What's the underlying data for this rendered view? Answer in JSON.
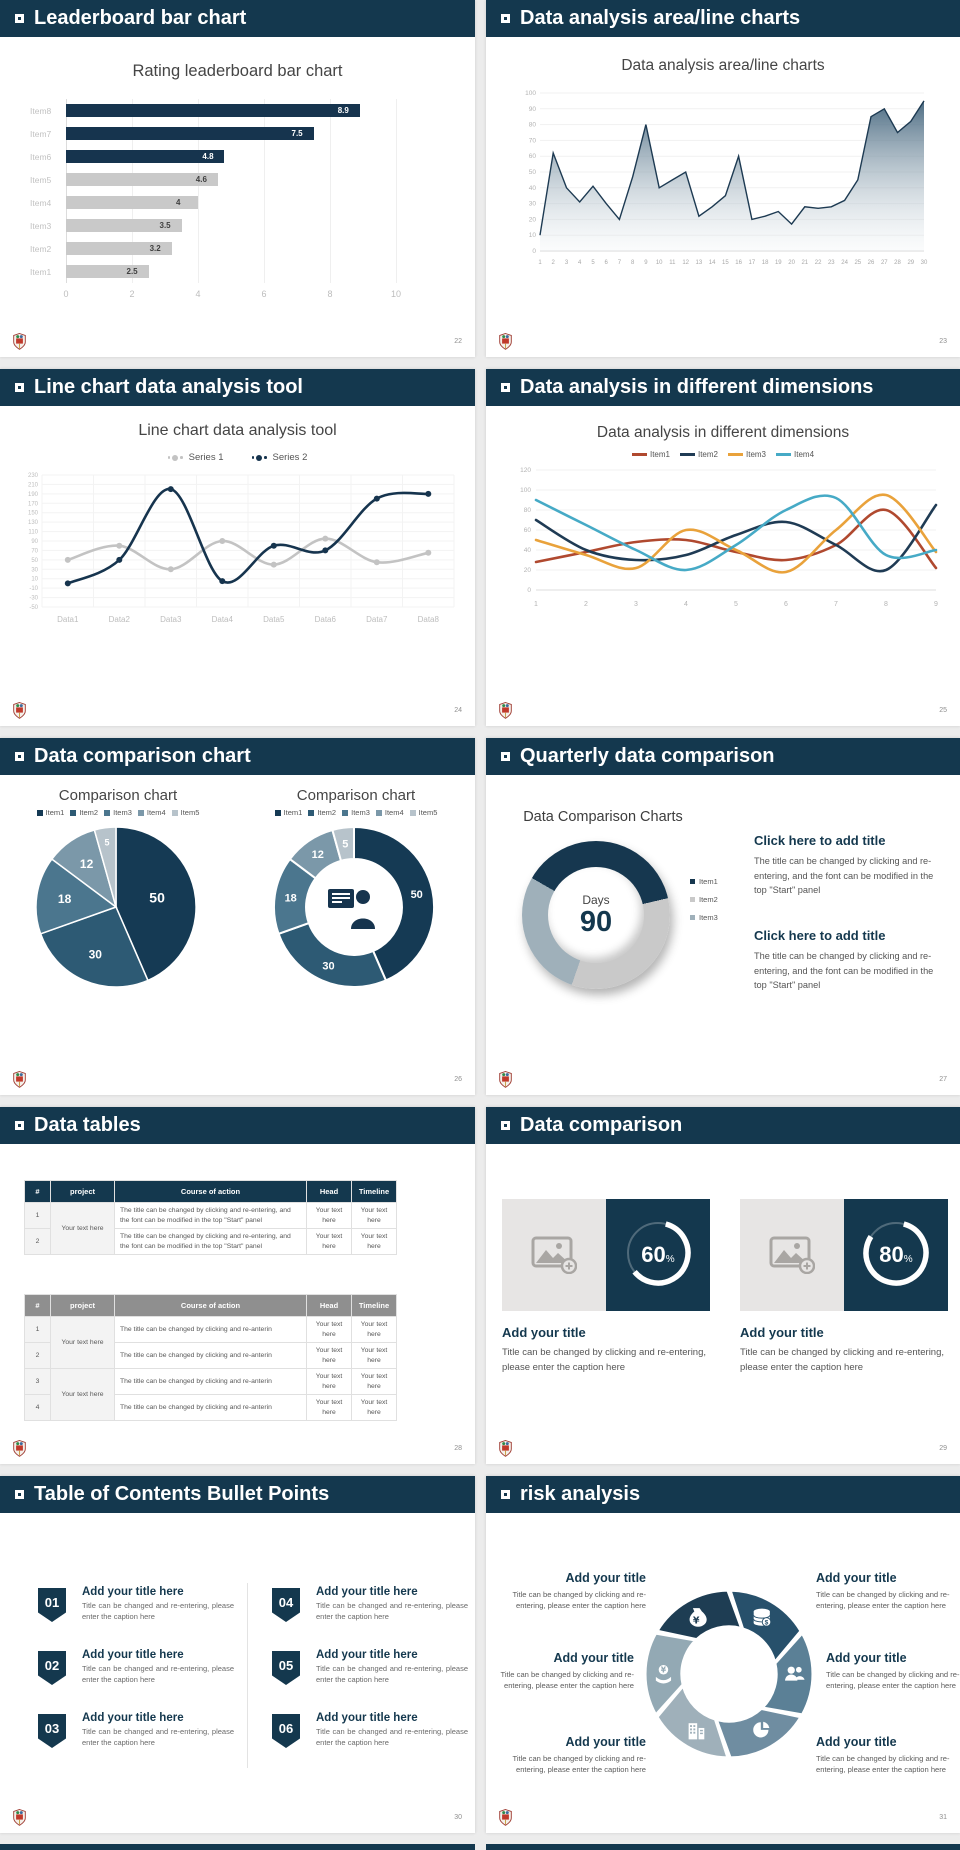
{
  "page": {
    "background": "#ececec",
    "slide_background": "#ffffff",
    "header_color": "#14384e",
    "accent_color": "#14384e",
    "logo": "crest-logo"
  },
  "slides": [
    {
      "header": "Leaderboard bar chart",
      "page_number": "22",
      "chart_data": {
        "type": "bar",
        "orientation": "horizontal",
        "title": "Rating leaderboard bar chart",
        "categories": [
          "Item8",
          "Item7",
          "Item6",
          "Item5",
          "Item4",
          "Item3",
          "Item2",
          "Item1"
        ],
        "values": [
          8.9,
          7.5,
          4.8,
          4.6,
          4,
          3.5,
          3.2,
          2.5
        ],
        "bar_colors": [
          "#16344e",
          "#16344e",
          "#16344e",
          "#c9c9c9",
          "#c9c9c9",
          "#c9c9c9",
          "#c9c9c9",
          "#c9c9c9"
        ],
        "value_label_colors": [
          "#ffffff",
          "#ffffff",
          "#ffffff",
          "#3f3f3f",
          "#3f3f3f",
          "#3f3f3f",
          "#3f3f3f",
          "#3f3f3f"
        ],
        "xticks": [
          0,
          2,
          4,
          6,
          8,
          10
        ],
        "xlim": [
          0,
          10
        ],
        "grid": true
      }
    },
    {
      "header": "Data analysis area/line charts",
      "page_number": "23",
      "chart_data": {
        "type": "area",
        "title": "Data analysis area/line charts",
        "x": [
          1,
          2,
          3,
          4,
          5,
          6,
          7,
          8,
          9,
          10,
          11,
          12,
          13,
          14,
          15,
          16,
          17,
          18,
          19,
          20,
          21,
          22,
          23,
          24,
          25,
          26,
          27,
          28,
          29,
          30
        ],
        "values": [
          10,
          62,
          40,
          31,
          41,
          30,
          20,
          47,
          80,
          40,
          45,
          50,
          22,
          28,
          35,
          60,
          20,
          22,
          25,
          17,
          28,
          27,
          28,
          32,
          45,
          85,
          90,
          75,
          82,
          95
        ],
        "yticks": [
          0,
          10,
          20,
          30,
          40,
          50,
          60,
          70,
          80,
          90,
          100
        ],
        "ylim": [
          0,
          100
        ],
        "line_color": "#1d3a52",
        "fill_top_color": "#44657d",
        "fill_bottom_color": "#eef2f4",
        "grid": true
      }
    },
    {
      "header": "Line chart data analysis tool",
      "page_number": "24",
      "chart_data": {
        "type": "line",
        "title": "Line chart data analysis tool",
        "categories": [
          "Data1",
          "Data2",
          "Data3",
          "Data4",
          "Data5",
          "Data6",
          "Data7",
          "Data8"
        ],
        "series": [
          {
            "name": "Series 1",
            "color": "#c3c3c3",
            "values": [
              50,
              80,
              30,
              90,
              40,
              95,
              45,
              65
            ]
          },
          {
            "name": "Series 2",
            "color": "#16344e",
            "values": [
              0,
              50,
              200,
              5,
              80,
              70,
              180,
              190
            ]
          }
        ],
        "yticks": [
          230,
          210,
          190,
          170,
          150,
          130,
          110,
          90,
          70,
          50,
          30,
          10,
          -10,
          -30,
          -50
        ],
        "ylim": [
          -50,
          230
        ],
        "legend_position": "top",
        "grid": true
      }
    },
    {
      "header": "Data analysis in different dimensions",
      "page_number": "25",
      "chart_data": {
        "type": "line",
        "title": "Data analysis in different dimensions",
        "x": [
          1,
          2,
          3,
          4,
          5,
          6,
          7,
          8,
          9
        ],
        "series": [
          {
            "name": "Item1",
            "color": "#b0492f",
            "values": [
              28,
              38,
              48,
              50,
              38,
              30,
              45,
              80,
              22
            ]
          },
          {
            "name": "Item2",
            "color": "#1f3b54",
            "values": [
              70,
              40,
              30,
              35,
              55,
              68,
              45,
              20,
              85
            ]
          },
          {
            "name": "Item3",
            "color": "#e9a23b",
            "values": [
              50,
              35,
              22,
              60,
              40,
              18,
              60,
              95,
              38
            ]
          },
          {
            "name": "Item4",
            "color": "#46aac6",
            "values": [
              90,
              65,
              40,
              20,
              45,
              80,
              92,
              35,
              40
            ]
          }
        ],
        "yticks": [
          0,
          20,
          40,
          60,
          80,
          100,
          120
        ],
        "ylim": [
          0,
          120
        ],
        "legend_position": "top",
        "grid": true
      }
    },
    {
      "header": "Data comparison chart",
      "page_number": "26",
      "chart_data": [
        {
          "type": "pie",
          "title": "Comparison chart",
          "labels": [
            "Item1",
            "Item2",
            "Item3",
            "Item4",
            "Item5"
          ],
          "values": [
            50,
            30,
            18,
            12,
            5
          ],
          "colors": [
            "#153a54",
            "#2d5a74",
            "#4b768e",
            "#7b98a9",
            "#b7c3cb"
          ],
          "legend_position": "top"
        },
        {
          "type": "donut",
          "title": "Comparison chart",
          "labels": [
            "Item1",
            "Item2",
            "Item3",
            "Item4",
            "Item5"
          ],
          "values": [
            50,
            30,
            18,
            12,
            5
          ],
          "colors": [
            "#153a54",
            "#2d5a74",
            "#4b768e",
            "#7b98a9",
            "#b7c3cb"
          ],
          "legend_position": "top",
          "center_icon": "presenter-icon"
        }
      ]
    },
    {
      "header": "Quarterly data comparison",
      "page_number": "27",
      "chart_data": {
        "type": "donut",
        "title": "Data Comparison Charts",
        "center_label": "Days",
        "center_value": "90",
        "legend": [
          "Item1",
          "Item2",
          "Item3"
        ],
        "values": [
          38,
          34,
          28
        ],
        "colors": [
          "#16374f",
          "#c9c9c9",
          "#9fb0ba"
        ]
      },
      "text_blocks": [
        {
          "title": "Click here to add title",
          "body": "The title can be changed by clicking and re-entering, and the font can be modified in the top \"Start\" panel"
        },
        {
          "title": "Click here to add title",
          "body": "The title can be changed by clicking and re-entering, and the font can be modified in the top \"Start\" panel"
        }
      ]
    },
    {
      "header": "Data tables",
      "page_number": "28",
      "tables": [
        {
          "style": "navy",
          "columns": [
            "#",
            "project",
            "Course of action",
            "Head",
            "Timeline"
          ],
          "rows": [
            [
              "1",
              "Your text here",
              "The title can be changed by clicking and re-entering, and the font can be modified in the top \"Start\" panel",
              "Your text here",
              "Your text here"
            ],
            [
              "2",
              "Your text here",
              "The title can be changed by clicking and re-entering, and the font can be modified in the top \"Start\" panel",
              "Your text here",
              "Your text here"
            ]
          ]
        },
        {
          "style": "gray",
          "columns": [
            "#",
            "project",
            "Course of action",
            "Head",
            "Timeline"
          ],
          "rows": [
            [
              "1",
              "Your text here",
              "The title can be changed by clicking and re-anterin",
              "Your text here",
              "Your text here"
            ],
            [
              "2",
              "Your text here",
              "The title can be changed by clicking and re-anterin",
              "Your text here",
              "Your text here"
            ],
            [
              "3",
              "Your text here",
              "The title can be changed by clicking and re-anterin",
              "Your text here",
              "Your text here"
            ],
            [
              "4",
              "Your text here",
              "The title can be changed by clicking and re-anterin",
              "Your text here",
              "Your text here"
            ]
          ]
        }
      ]
    },
    {
      "header": "Data comparison",
      "page_number": "29",
      "cards": [
        {
          "percent_value": "60",
          "percent_sign": "%",
          "percent": 60,
          "title": "Add your title",
          "caption": "Title can be changed by clicking and re-entering, please enter the caption here",
          "icon": "image-placeholder-icon"
        },
        {
          "percent_value": "80",
          "percent_sign": "%",
          "percent": 80,
          "title": "Add your title",
          "caption": "Title can be changed by clicking and re-entering, please enter the caption here",
          "icon": "image-placeholder-icon"
        }
      ]
    },
    {
      "header": "Table of Contents Bullet Points",
      "page_number": "30",
      "items": [
        {
          "number": "01",
          "title": "Add your title here",
          "caption": "Title can be changed and re-entering, please enter the caption here"
        },
        {
          "number": "02",
          "title": "Add your title here",
          "caption": "Title can be changed and re-entering, please enter the caption here"
        },
        {
          "number": "03",
          "title": "Add your title here",
          "caption": "Title can be changed and re-entering, please enter the caption here"
        },
        {
          "number": "04",
          "title": "Add your title here",
          "caption": "Title can be changed and re-entering, please enter the caption here"
        },
        {
          "number": "05",
          "title": "Add your title here",
          "caption": "Title can be changed and re-entering, please enter the caption here"
        },
        {
          "number": "06",
          "title": "Add your title here",
          "caption": "Title can be changed and re-entering, please enter the caption here"
        }
      ]
    },
    {
      "header": "risk analysis",
      "page_number": "31",
      "diagram": {
        "type": "pinwheel",
        "segments": [
          {
            "icon": "money-bag-icon",
            "color": "#1e3d53"
          },
          {
            "icon": "coins-icon",
            "color": "#27506b"
          },
          {
            "icon": "people-icon",
            "color": "#5b8096"
          },
          {
            "icon": "pie-chart-icon",
            "color": "#6f8da1"
          },
          {
            "icon": "building-icon",
            "color": "#9fb0ba"
          },
          {
            "icon": "hand-coin-icon",
            "color": "#93a9b4"
          }
        ]
      },
      "blocks": [
        {
          "title": "Add your title",
          "caption": "Title can be changed by clicking and re-entering, please enter the caption here"
        },
        {
          "title": "Add your title",
          "caption": "Title can be changed by clicking and re-entering, please enter the caption here"
        },
        {
          "title": "Add your title",
          "caption": "Title can be changed by clicking and re-entering, please enter the caption here"
        },
        {
          "title": "Add your title",
          "caption": "Title can be changed by clicking and re-entering, please enter the caption here"
        },
        {
          "title": "Add your title",
          "caption": "Title can be changed by clicking and re-entering, please enter the caption here"
        },
        {
          "title": "Add your title",
          "caption": "Title can be changed by clicking and re-entering, please enter the caption here"
        }
      ]
    }
  ]
}
